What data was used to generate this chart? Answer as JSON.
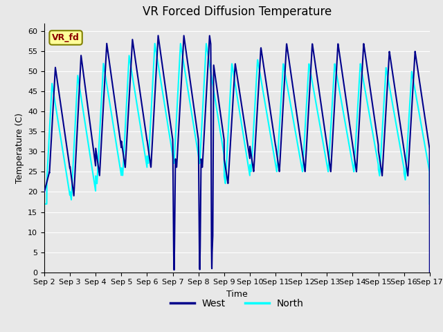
{
  "title": "VR Forced Diffusion Temperature",
  "xlabel": "Time",
  "ylabel": "Temperature (C)",
  "ylim": [
    0,
    62
  ],
  "xlim": [
    0,
    15
  ],
  "xtick_labels": [
    "Sep 2",
    "Sep 3",
    "Sep 4",
    "Sep 5",
    "Sep 6",
    "Sep 7",
    "Sep 8",
    "Sep 9",
    "Sep 10",
    "Sep 11",
    "Sep 12",
    "Sep 13",
    "Sep 14",
    "Sep 15",
    "Sep 16",
    "Sep 17"
  ],
  "west_color": "#00008B",
  "north_color": "#00FFFF",
  "fig_facecolor": "#E8E8E8",
  "ax_facecolor": "#E8E8E8",
  "grid_color": "#FFFFFF",
  "legend_label_color": "#8B0000",
  "legend_box_facecolor": "#FFFF99",
  "legend_box_edgecolor": "#808000",
  "west_label": "West",
  "north_label": "North",
  "vr_fd_label": "VR_fd",
  "west_linewidth": 1.5,
  "north_linewidth": 1.5,
  "title_fontsize": 12,
  "axis_label_fontsize": 9,
  "tick_fontsize": 8,
  "legend_fontsize": 10
}
